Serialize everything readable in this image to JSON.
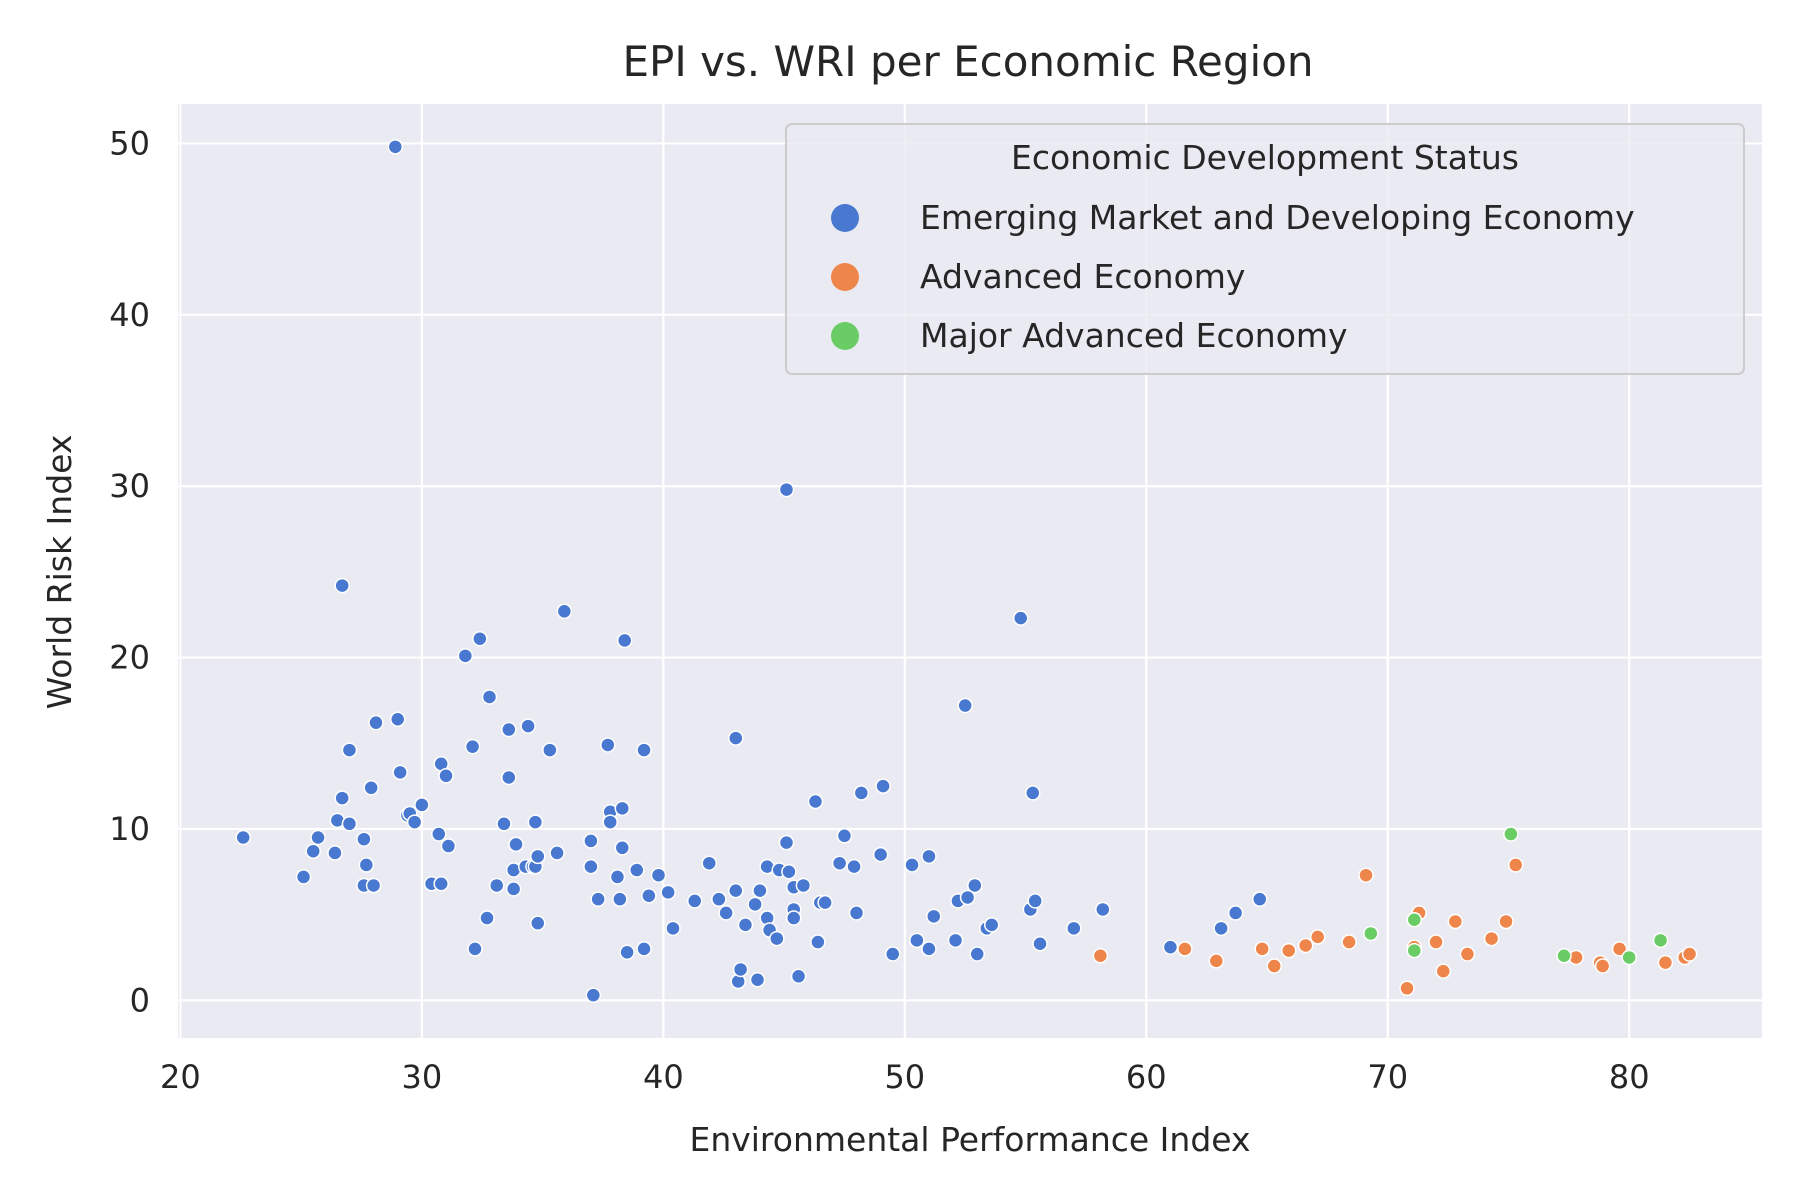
{
  "chart_data": {
    "type": "scatter",
    "title": "EPI vs. WRI per Economic Region",
    "xlabel": "Environmental Performance Index",
    "ylabel": "World Risk Index",
    "xlim": [
      19.9,
      85.5
    ],
    "ylim": [
      -2.2,
      52.3
    ],
    "xticks": [
      20,
      30,
      40,
      50,
      60,
      70,
      80
    ],
    "yticks": [
      0,
      10,
      20,
      30,
      40,
      50
    ],
    "grid": true,
    "legend": {
      "title": "Economic Development Status",
      "placement": "top-right"
    },
    "series": [
      {
        "name": "Emerging Market and Developing Economy",
        "color": "#4878d0",
        "points": [
          [
            22.6,
            9.5
          ],
          [
            25.1,
            7.2
          ],
          [
            25.5,
            8.7
          ],
          [
            25.7,
            9.5
          ],
          [
            26.4,
            8.6
          ],
          [
            26.5,
            10.5
          ],
          [
            26.7,
            11.8
          ],
          [
            26.7,
            24.2
          ],
          [
            27,
            14.6
          ],
          [
            27,
            10.3
          ],
          [
            27.6,
            6.7
          ],
          [
            27.6,
            9.4
          ],
          [
            27.7,
            7.9
          ],
          [
            27.9,
            12.4
          ],
          [
            28,
            6.7
          ],
          [
            28.1,
            16.2
          ],
          [
            28.9,
            49.8
          ],
          [
            29,
            16.4
          ],
          [
            29.1,
            13.3
          ],
          [
            29.4,
            10.8
          ],
          [
            29.5,
            10.9
          ],
          [
            29.7,
            10.4
          ],
          [
            30,
            11.4
          ],
          [
            30.4,
            6.8
          ],
          [
            30.7,
            9.7
          ],
          [
            30.8,
            13.8
          ],
          [
            30.8,
            6.8
          ],
          [
            31,
            13.1
          ],
          [
            31.1,
            9
          ],
          [
            31.8,
            20.1
          ],
          [
            32.1,
            14.8
          ],
          [
            32.2,
            3
          ],
          [
            32.4,
            21.1
          ],
          [
            32.7,
            4.8
          ],
          [
            32.8,
            17.7
          ],
          [
            33.1,
            6.7
          ],
          [
            33.4,
            10.3
          ],
          [
            33.6,
            15.8
          ],
          [
            33.6,
            13
          ],
          [
            33.8,
            7.6
          ],
          [
            33.8,
            6.5
          ],
          [
            33.9,
            9.1
          ],
          [
            34.3,
            7.8
          ],
          [
            34.4,
            16
          ],
          [
            34.6,
            7.8
          ],
          [
            34.7,
            10.4
          ],
          [
            34.7,
            7.8
          ],
          [
            34.8,
            8.4
          ],
          [
            34.8,
            4.5
          ],
          [
            35.3,
            14.6
          ],
          [
            35.6,
            8.6
          ],
          [
            35.9,
            22.7
          ],
          [
            37,
            7.8
          ],
          [
            37,
            9.3
          ],
          [
            37.1,
            0.3
          ],
          [
            37.3,
            5.9
          ],
          [
            37.7,
            14.9
          ],
          [
            37.8,
            11
          ],
          [
            37.8,
            10.4
          ],
          [
            38.1,
            7.2
          ],
          [
            38.2,
            5.9
          ],
          [
            38.3,
            8.9
          ],
          [
            38.3,
            11.2
          ],
          [
            38.4,
            21
          ],
          [
            38.5,
            2.8
          ],
          [
            38.9,
            7.6
          ],
          [
            39.2,
            3
          ],
          [
            39.2,
            14.6
          ],
          [
            39.4,
            6.1
          ],
          [
            39.8,
            7.3
          ],
          [
            40.2,
            6.3
          ],
          [
            40.4,
            4.2
          ],
          [
            41.3,
            5.8
          ],
          [
            41.9,
            8
          ],
          [
            42.3,
            5.9
          ],
          [
            42.6,
            5.1
          ],
          [
            43,
            6.4
          ],
          [
            43,
            15.3
          ],
          [
            43.1,
            1.1
          ],
          [
            43.2,
            1.8
          ],
          [
            43.4,
            4.4
          ],
          [
            43.8,
            5.6
          ],
          [
            43.9,
            1.2
          ],
          [
            44,
            6.4
          ],
          [
            44.3,
            7.8
          ],
          [
            44.3,
            4.8
          ],
          [
            44.4,
            4.1
          ],
          [
            44.7,
            3.6
          ],
          [
            44.8,
            7.6
          ],
          [
            45.1,
            9.2
          ],
          [
            45.1,
            29.8
          ],
          [
            45.2,
            7.5
          ],
          [
            45.4,
            5.3
          ],
          [
            45.4,
            4.8
          ],
          [
            45.4,
            6.6
          ],
          [
            45.6,
            1.4
          ],
          [
            45.8,
            6.7
          ],
          [
            46.3,
            11.6
          ],
          [
            46.4,
            3.4
          ],
          [
            46.5,
            5.7
          ],
          [
            46.7,
            5.7
          ],
          [
            47.3,
            8
          ],
          [
            47.5,
            9.6
          ],
          [
            47.9,
            7.8
          ],
          [
            48,
            5.1
          ],
          [
            48.2,
            12.1
          ],
          [
            49,
            8.5
          ],
          [
            49.1,
            12.5
          ],
          [
            49.5,
            2.7
          ],
          [
            50.3,
            7.9
          ],
          [
            50.5,
            3.5
          ],
          [
            51,
            3
          ],
          [
            51,
            8.4
          ],
          [
            51.2,
            4.9
          ],
          [
            52.1,
            3.5
          ],
          [
            52.2,
            5.8
          ],
          [
            52.5,
            17.2
          ],
          [
            52.6,
            6
          ],
          [
            52.9,
            6.7
          ],
          [
            53,
            2.7
          ],
          [
            53.4,
            4.2
          ],
          [
            53.6,
            4.4
          ],
          [
            54.8,
            22.3
          ],
          [
            55.2,
            5.3
          ],
          [
            55.3,
            12.1
          ],
          [
            55.4,
            5.8
          ],
          [
            55.6,
            3.3
          ],
          [
            57,
            4.2
          ],
          [
            58.2,
            5.3
          ],
          [
            61,
            3.1
          ],
          [
            63.1,
            4.2
          ],
          [
            63.7,
            5.1
          ],
          [
            64.7,
            5.9
          ]
        ]
      },
      {
        "name": "Advanced Economy",
        "color": "#ee854a",
        "points": [
          [
            58.1,
            2.6
          ],
          [
            61.6,
            3
          ],
          [
            62.9,
            2.3
          ],
          [
            64.8,
            3
          ],
          [
            65.3,
            2
          ],
          [
            65.9,
            2.9
          ],
          [
            66.6,
            3.2
          ],
          [
            67.1,
            3.7
          ],
          [
            68.4,
            3.4
          ],
          [
            69.1,
            7.3
          ],
          [
            70.8,
            0.7
          ],
          [
            71.1,
            3.1
          ],
          [
            71.3,
            5.1
          ],
          [
            72,
            3.4
          ],
          [
            72.3,
            1.7
          ],
          [
            72.8,
            4.6
          ],
          [
            73.3,
            2.7
          ],
          [
            74.3,
            3.6
          ],
          [
            74.9,
            4.6
          ],
          [
            75.3,
            7.9
          ],
          [
            77.8,
            2.5
          ],
          [
            78.8,
            2.2
          ],
          [
            78.9,
            2
          ],
          [
            79.6,
            3
          ],
          [
            81.5,
            2.2
          ],
          [
            82.3,
            2.5
          ],
          [
            82.5,
            2.7
          ]
        ]
      },
      {
        "name": "Major Advanced Economy",
        "color": "#6acc64",
        "points": [
          [
            69.3,
            3.9
          ],
          [
            71.1,
            2.9
          ],
          [
            71.1,
            4.7
          ],
          [
            75.1,
            9.7
          ],
          [
            77.3,
            2.6
          ],
          [
            80,
            2.5
          ],
          [
            81.3,
            3.5
          ]
        ]
      }
    ]
  }
}
